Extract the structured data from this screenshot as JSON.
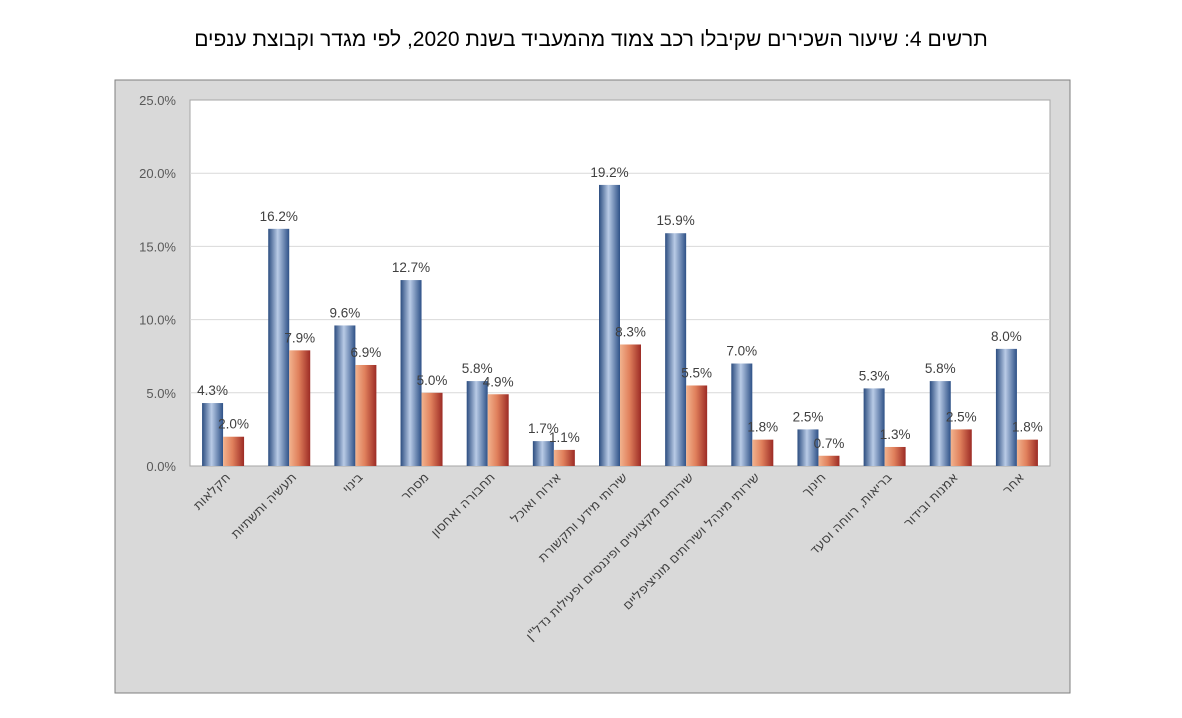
{
  "chart_data": {
    "type": "bar",
    "title": "תרשים 4: שיעור השכירים שקיבלו רכב צמוד מהמעביד בשנת 2020, לפי מגדר וקבוצת ענפים",
    "categories": [
      "חקלאות",
      "תעשיה ותשתיות",
      "בינוי",
      "מסחר",
      "תחבורה ואחסון",
      "אירוח  ואוכל",
      "שירותי מידע ותקשורת",
      "שירותים מקצועיים ופיננסיים ופעילות נדל\"ן",
      "שירותי מינהל ושירותים מוניציפליים",
      "חינוך",
      "בריאות, רווחה וסעד",
      "אמנות ובידור",
      "אחר"
    ],
    "series": [
      {
        "values": [
          4.3,
          16.2,
          9.6,
          12.7,
          5.8,
          1.7,
          19.2,
          15.9,
          7.0,
          2.5,
          5.3,
          5.8,
          8.0
        ],
        "color": "#4a6fa5"
      },
      {
        "values": [
          2.0,
          7.9,
          6.9,
          5.0,
          4.9,
          1.1,
          8.3,
          5.5,
          1.8,
          0.7,
          1.3,
          2.5,
          1.8
        ],
        "color": "#c0504d"
      }
    ],
    "y_ticks": [
      "0.0%",
      "5.0%",
      "10.0%",
      "15.0%",
      "20.0%",
      "25.0%"
    ],
    "ylim": [
      0,
      25
    ],
    "y_unit": "%",
    "grid": true,
    "legend": "none",
    "xlabel": "",
    "ylabel": ""
  }
}
